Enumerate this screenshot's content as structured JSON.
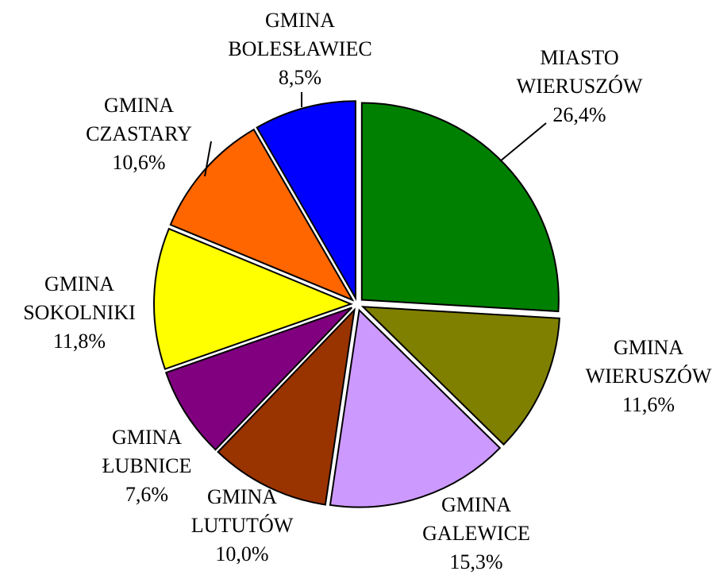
{
  "chart_data": {
    "type": "pie",
    "categories": [
      "MIASTO WIERUSZÓW",
      "GMINA WIERUSZÓW",
      "GMINA GALEWICE",
      "GMINA LUTUTÓW",
      "GMINA ŁUBNICE",
      "GMINA SOKOLNIKI",
      "GMINA CZASTARY",
      "GMINA BOLESŁAWIEC"
    ],
    "values": [
      26.4,
      11.6,
      15.3,
      10.0,
      7.6,
      11.8,
      10.6,
      8.5
    ],
    "value_labels": [
      "26,4%",
      "11,6%",
      "15,3%",
      "10,0%",
      "7,6%",
      "11,8%",
      "10,6%",
      "8,5%"
    ],
    "colors": [
      "#008000",
      "#808000",
      "#cc99ff",
      "#993300",
      "#800080",
      "#ffff00",
      "#ff6600",
      "#0000ff"
    ]
  }
}
